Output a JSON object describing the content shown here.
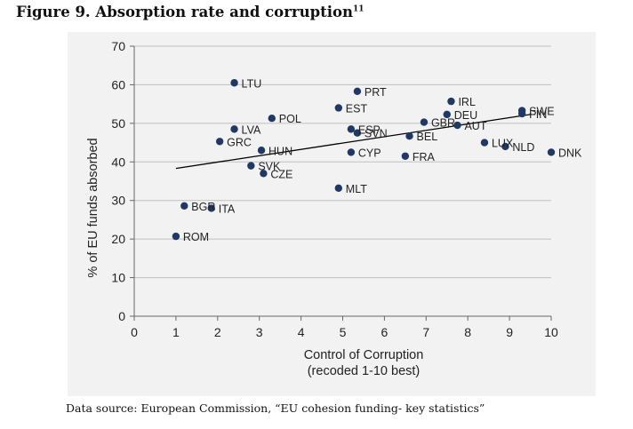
{
  "figure": {
    "title": "Figure 9. Absorption rate and corruption",
    "footnote_marker": "11",
    "source": "Data source: European Commission, “EU cohesion funding- key statistics”"
  },
  "chart_data": {
    "type": "scatter",
    "xlabel": "Control of Corruption",
    "xlabel_sub": "(recoded 1-10 best)",
    "ylabel": "% of EU funds absorbed",
    "xlim": [
      0,
      10
    ],
    "ylim": [
      0,
      70
    ],
    "xticks": [
      0,
      1,
      2,
      3,
      4,
      5,
      6,
      7,
      8,
      9,
      10
    ],
    "yticks": [
      0,
      10,
      20,
      30,
      40,
      50,
      60,
      70
    ],
    "grid": "horizontal",
    "colors": {
      "points": "#1f3864",
      "trendline": "#000000",
      "grid": "#c0c0c0"
    },
    "points": [
      {
        "label": "LTU",
        "x": 2.4,
        "y": 60.5
      },
      {
        "label": "PRT",
        "x": 5.35,
        "y": 58.3
      },
      {
        "label": "IRL",
        "x": 7.6,
        "y": 55.7
      },
      {
        "label": "EST",
        "x": 4.9,
        "y": 54
      },
      {
        "label": "SWE",
        "x": 9.3,
        "y": 53.3
      },
      {
        "label": "FIN",
        "x": 9.3,
        "y": 52.5
      },
      {
        "label": "DEU",
        "x": 7.5,
        "y": 52.3
      },
      {
        "label": "POL",
        "x": 3.3,
        "y": 51.3
      },
      {
        "label": "GBR",
        "x": 6.95,
        "y": 50.3
      },
      {
        "label": "AUT",
        "x": 7.75,
        "y": 49.5
      },
      {
        "label": "LVA",
        "x": 2.4,
        "y": 48.5
      },
      {
        "label": "ESP",
        "x": 5.2,
        "y": 48.5
      },
      {
        "label": "SVN",
        "x": 5.35,
        "y": 47.5
      },
      {
        "label": "BEL",
        "x": 6.6,
        "y": 46.7
      },
      {
        "label": "GRC",
        "x": 2.05,
        "y": 45.3
      },
      {
        "label": "LUX",
        "x": 8.4,
        "y": 45
      },
      {
        "label": "NLD",
        "x": 8.9,
        "y": 44
      },
      {
        "label": "HUN",
        "x": 3.05,
        "y": 43
      },
      {
        "label": "CYP",
        "x": 5.2,
        "y": 42.5
      },
      {
        "label": "DNK",
        "x": 10,
        "y": 42.5
      },
      {
        "label": "FRA",
        "x": 6.5,
        "y": 41.5
      },
      {
        "label": "SVK",
        "x": 2.8,
        "y": 39
      },
      {
        "label": "CZE",
        "x": 3.1,
        "y": 37
      },
      {
        "label": "MLT",
        "x": 4.9,
        "y": 33.2
      },
      {
        "label": "BGR",
        "x": 1.2,
        "y": 28.6
      },
      {
        "label": "ITA",
        "x": 1.85,
        "y": 28
      },
      {
        "label": "ROM",
        "x": 1.0,
        "y": 20.7
      }
    ],
    "trendline": {
      "x": [
        1,
        9.5
      ],
      "y": [
        38.3,
        52.3
      ]
    }
  }
}
